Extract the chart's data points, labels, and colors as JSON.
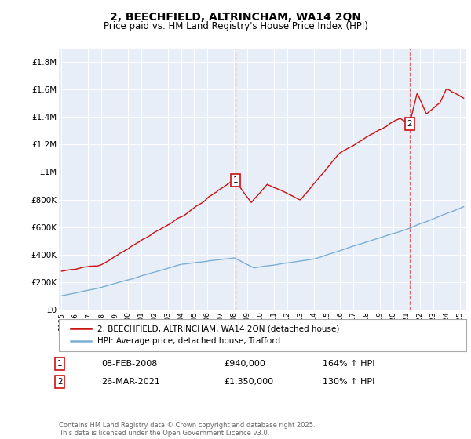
{
  "title": "2, BEECHFIELD, ALTRINCHAM, WA14 2QN",
  "subtitle": "Price paid vs. HM Land Registry's House Price Index (HPI)",
  "ylabel_ticks": [
    "£0",
    "£200K",
    "£400K",
    "£600K",
    "£800K",
    "£1M",
    "£1.2M",
    "£1.4M",
    "£1.6M",
    "£1.8M"
  ],
  "ytick_values": [
    0,
    200000,
    400000,
    600000,
    800000,
    1000000,
    1200000,
    1400000,
    1600000,
    1800000
  ],
  "ylim": [
    0,
    1900000
  ],
  "xlim_start": 1994.8,
  "xlim_end": 2025.5,
  "xticks": [
    1995,
    1996,
    1997,
    1998,
    1999,
    2000,
    2001,
    2002,
    2003,
    2004,
    2005,
    2006,
    2007,
    2008,
    2009,
    2010,
    2011,
    2012,
    2013,
    2014,
    2015,
    2016,
    2017,
    2018,
    2019,
    2020,
    2021,
    2022,
    2023,
    2024,
    2025
  ],
  "hpi_color": "#7bafd4",
  "price_color": "#cc1111",
  "marker1_date": 2008.1,
  "marker1_price": 940000,
  "marker1_label": "08-FEB-2008",
  "marker1_text": "£940,000",
  "marker1_pct": "164% ↑ HPI",
  "marker2_date": 2021.23,
  "marker2_price": 1350000,
  "marker2_label": "26-MAR-2021",
  "marker2_text": "£1,350,000",
  "marker2_pct": "130% ↑ HPI",
  "legend_label1": "2, BEECHFIELD, ALTRINCHAM, WA14 2QN (detached house)",
  "legend_label2": "HPI: Average price, detached house, Trafford",
  "footnote": "Contains HM Land Registry data © Crown copyright and database right 2025.\nThis data is licensed under the Open Government Licence v3.0.",
  "background_color": "#ffffff",
  "plot_bg_color": "#e8eef8"
}
